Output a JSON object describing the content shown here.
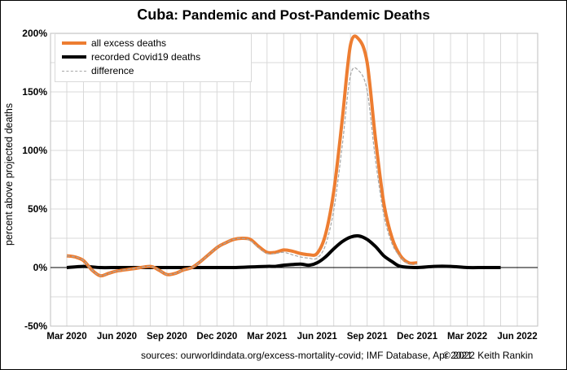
{
  "title": {
    "country": "Cuba",
    "rest": ": Pandemic and Post-Pandemic Deaths"
  },
  "source_text": "sources: ourworldindata.org/excess-mortality-covid; IMF Database, Apr 2021",
  "copyright_text": "© 2022 Keith Rankin",
  "colors": {
    "excess": "#ED7D31",
    "covid": "#000000",
    "difference": "#A6A6A6",
    "grid": "#D9D9D9"
  },
  "chart_data": {
    "type": "line",
    "title": "Cuba: Pandemic and Post-Pandemic Deaths",
    "xlabel": "",
    "ylabel": "percent above projected deaths",
    "ylim": [
      -50,
      200
    ],
    "yticks": [
      -50,
      0,
      50,
      100,
      150,
      200
    ],
    "ytick_labels": [
      "-50%",
      "0%",
      "50%",
      "100%",
      "150%",
      "200%"
    ],
    "xlim_months": [
      0,
      27
    ],
    "xticks_months": [
      0,
      3,
      6,
      9,
      12,
      15,
      18,
      21,
      24,
      27
    ],
    "xtick_labels": [
      "Mar 2020",
      "Jun 2020",
      "Sep 2020",
      "Dec 2020",
      "Mar 2021",
      "Jun 2021",
      "Sep 2021",
      "Dec 2021",
      "Mar 2022",
      "Jun 2022"
    ],
    "x_unit": "months since Mar 2020",
    "grid": true,
    "legend_position": "top-left",
    "series": [
      {
        "name": "all excess deaths",
        "style": "thick-orange",
        "x": [
          0,
          0.5,
          1,
          1.5,
          2,
          2.5,
          3,
          4,
          5,
          5.5,
          6,
          6.5,
          7,
          7.5,
          8,
          9,
          9.5,
          10,
          10.5,
          11,
          11.5,
          12,
          12.5,
          13,
          13.5,
          14,
          14.5,
          15,
          15.5,
          16,
          16.5,
          17,
          17.5,
          18,
          18.5,
          19,
          19.5,
          20,
          20.5,
          21
        ],
        "values": [
          10,
          9,
          6,
          -2,
          -7,
          -5,
          -3,
          -1,
          1,
          -2,
          -6,
          -5,
          -2,
          0,
          5,
          17,
          21,
          24,
          25,
          24,
          18,
          13,
          13,
          15,
          14,
          12,
          11,
          12,
          28,
          65,
          125,
          190,
          195,
          175,
          110,
          55,
          25,
          10,
          4,
          4
        ]
      },
      {
        "name": "recorded Covid19 deaths",
        "style": "thick-black",
        "x": [
          0,
          1,
          2,
          3,
          4,
          5,
          6,
          7,
          8,
          9,
          10,
          11,
          12,
          12.5,
          13,
          14,
          14.5,
          15,
          15.5,
          16,
          16.5,
          17,
          17.5,
          18,
          18.5,
          19,
          19.5,
          20,
          21,
          22,
          23,
          24,
          25,
          26
        ],
        "values": [
          0,
          1,
          0,
          0,
          0,
          0,
          0,
          0,
          0,
          0,
          0,
          0.5,
          1,
          1,
          2,
          3,
          2,
          4,
          9,
          16,
          22,
          26,
          27,
          24,
          18,
          10,
          5,
          1,
          0,
          1,
          1,
          0,
          0,
          0
        ]
      },
      {
        "name": "difference",
        "style": "thin-dashed-grey",
        "x": [
          0,
          0.5,
          1,
          1.5,
          2,
          2.5,
          3,
          4,
          5,
          5.5,
          6,
          6.5,
          7,
          7.5,
          8,
          9,
          9.5,
          10,
          10.5,
          11,
          11.5,
          12,
          12.5,
          13,
          13.5,
          14,
          14.5,
          15,
          15.5,
          16,
          16.5,
          17,
          17.5,
          18,
          18.5,
          19,
          19.5,
          20,
          20.5,
          21
        ],
        "values": [
          10,
          9,
          6,
          -2,
          -7,
          -5,
          -3,
          -1,
          1,
          -2,
          -6,
          -5,
          -2,
          0,
          5,
          17,
          21,
          24,
          25,
          23,
          17,
          12,
          12,
          13,
          11,
          9,
          8,
          8,
          19,
          49,
          103,
          164,
          168,
          151,
          92,
          45,
          20,
          9,
          3,
          3
        ]
      }
    ]
  }
}
